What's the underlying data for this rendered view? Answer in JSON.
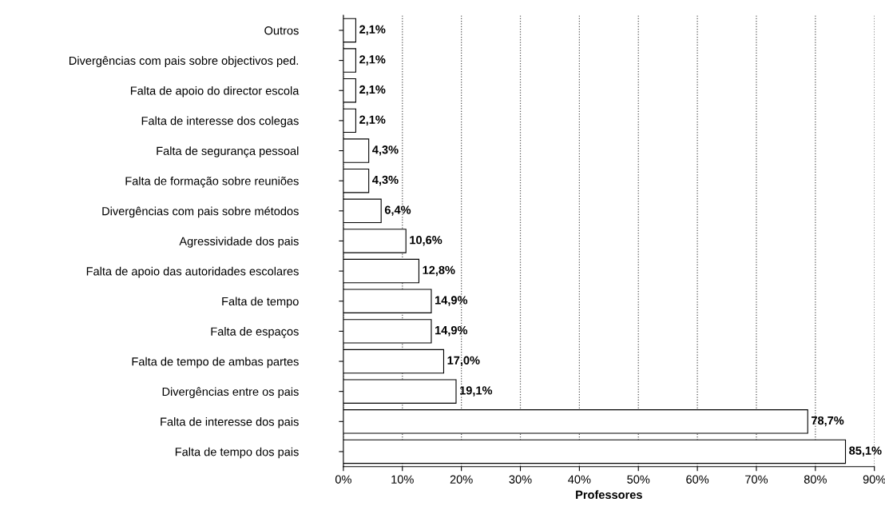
{
  "chart_data": {
    "type": "bar",
    "orientation": "horizontal",
    "xlabel": "Professores",
    "categories": [
      "Outros",
      "Divergências com pais sobre objectivos ped.",
      "Falta de apoio do director escola",
      "Falta de interesse dos colegas",
      "Falta de segurança pessoal",
      "Falta de formação sobre reuniões",
      "Divergências com pais sobre métodos",
      "Agressividade dos pais",
      "Falta de apoio das autoridades escolares",
      "Falta de tempo",
      "Falta de espaços",
      "Falta de tempo de ambas partes",
      "Divergências entre os pais",
      "Falta de interesse dos pais",
      "Falta de tempo dos pais"
    ],
    "values": [
      2.1,
      2.1,
      2.1,
      2.1,
      4.3,
      4.3,
      6.4,
      10.6,
      12.8,
      14.9,
      14.9,
      17.0,
      19.1,
      78.7,
      85.1
    ],
    "value_labels": [
      "2,1%",
      "2,1%",
      "2,1%",
      "2,1%",
      "4,3%",
      "4,3%",
      "6,4%",
      "10,6%",
      "12,8%",
      "14,9%",
      "14,9%",
      "17,0%",
      "19,1%",
      "78,7%",
      "85,1%"
    ],
    "color": "#ffffff",
    "xlim": [
      0,
      90
    ],
    "xticks": [
      {
        "value": 0,
        "label": "0%"
      },
      {
        "value": 10,
        "label": "10%"
      },
      {
        "value": 20,
        "label": "20%"
      },
      {
        "value": 30,
        "label": "30%"
      },
      {
        "value": 40,
        "label": "40%"
      },
      {
        "value": 50,
        "label": "50%"
      },
      {
        "value": 60,
        "label": "60%"
      },
      {
        "value": 70,
        "label": "70%"
      },
      {
        "value": 80,
        "label": "80%"
      },
      {
        "value": 90,
        "label": "90%"
      }
    ],
    "grid": "x",
    "legend": false
  }
}
